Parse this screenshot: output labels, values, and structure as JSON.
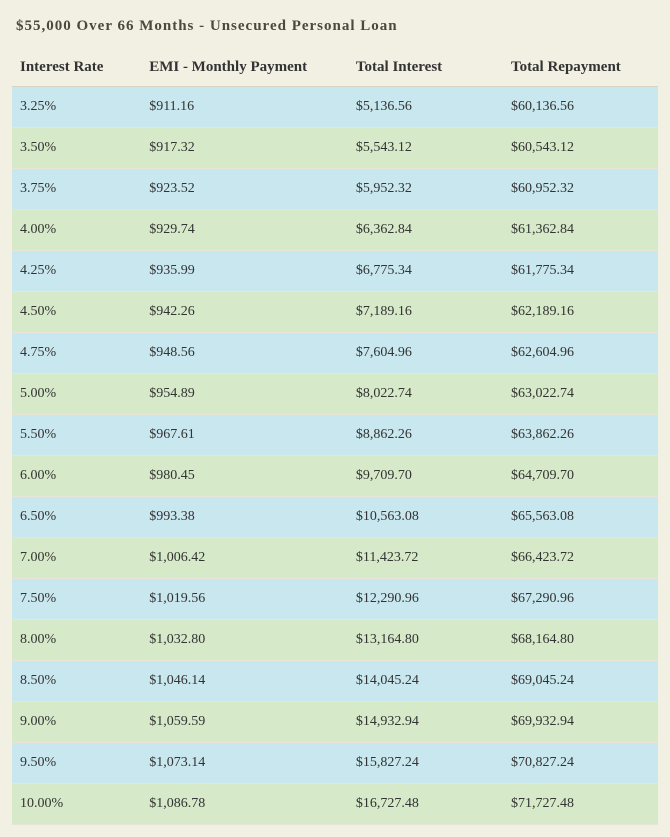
{
  "title": "$55,000 Over 66 Months - Unsecured Personal Loan",
  "columns": [
    "Interest Rate",
    "EMI - Monthly Payment",
    "Total Interest",
    "Total Repayment"
  ],
  "rows": [
    [
      "3.25%",
      "$911.16",
      "$5,136.56",
      "$60,136.56"
    ],
    [
      "3.50%",
      "$917.32",
      "$5,543.12",
      "$60,543.12"
    ],
    [
      "3.75%",
      "$923.52",
      "$5,952.32",
      "$60,952.32"
    ],
    [
      "4.00%",
      "$929.74",
      "$6,362.84",
      "$61,362.84"
    ],
    [
      "4.25%",
      "$935.99",
      "$6,775.34",
      "$61,775.34"
    ],
    [
      "4.50%",
      "$942.26",
      "$7,189.16",
      "$62,189.16"
    ],
    [
      "4.75%",
      "$948.56",
      "$7,604.96",
      "$62,604.96"
    ],
    [
      "5.00%",
      "$954.89",
      "$8,022.74",
      "$63,022.74"
    ],
    [
      "5.50%",
      "$967.61",
      "$8,862.26",
      "$63,862.26"
    ],
    [
      "6.00%",
      "$980.45",
      "$9,709.70",
      "$64,709.70"
    ],
    [
      "6.50%",
      "$993.38",
      "$10,563.08",
      "$65,563.08"
    ],
    [
      "7.00%",
      "$1,006.42",
      "$11,423.72",
      "$66,423.72"
    ],
    [
      "7.50%",
      "$1,019.56",
      "$12,290.96",
      "$67,290.96"
    ],
    [
      "8.00%",
      "$1,032.80",
      "$13,164.80",
      "$68,164.80"
    ],
    [
      "8.50%",
      "$1,046.14",
      "$14,045.24",
      "$69,045.24"
    ],
    [
      "9.00%",
      "$1,059.59",
      "$14,932.94",
      "$69,932.94"
    ],
    [
      "9.50%",
      "$1,073.14",
      "$15,827.24",
      "$70,827.24"
    ],
    [
      "10.00%",
      "$1,086.78",
      "$16,727.48",
      "$71,727.48"
    ]
  ],
  "colors": {
    "background": "#f2efe3",
    "odd_row": "#c9e7ef",
    "even_row": "#d6e9c8",
    "title_color": "#4a4a3a",
    "text_color": "#333333"
  },
  "typography": {
    "title_fontsize": 15,
    "header_fontsize": 15,
    "cell_fontsize": 14,
    "font_family": "Georgia"
  }
}
